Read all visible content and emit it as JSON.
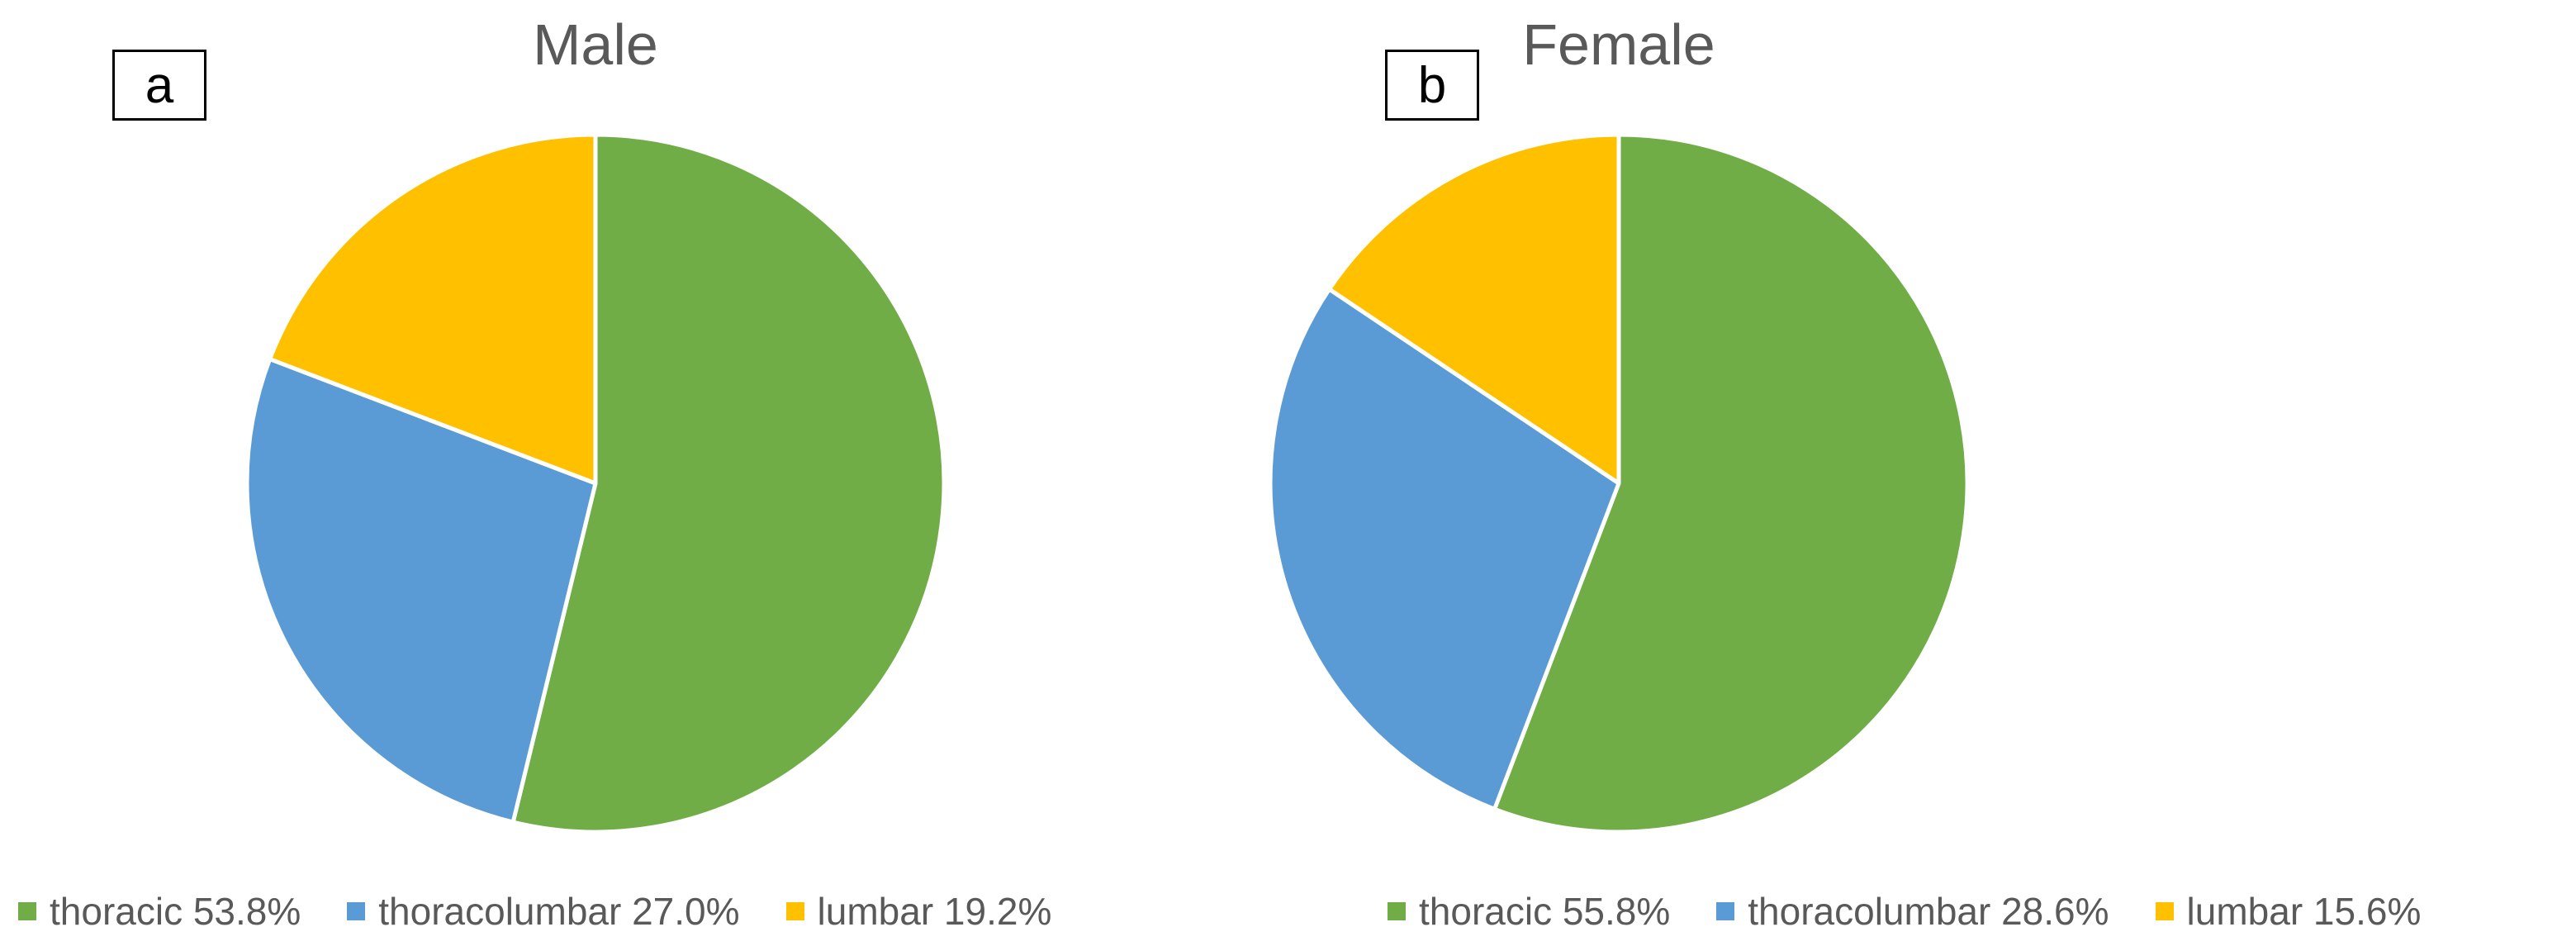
{
  "panels": [
    {
      "label": "a"
    },
    {
      "label": "b"
    }
  ],
  "chart_data": [
    {
      "type": "pie",
      "title": "Male",
      "categories": [
        "thoracic",
        "thoracolumbar",
        "lumbar"
      ],
      "values": [
        53.8,
        27.0,
        19.2
      ],
      "colors": [
        "#70AD47",
        "#5B9BD5",
        "#FFC000"
      ],
      "legend": [
        "thoracic 53.8%",
        "thoracolumbar 27.0%",
        "lumbar 19.2%"
      ],
      "legend_position": "bottom"
    },
    {
      "type": "pie",
      "title": "Female",
      "categories": [
        "thoracic",
        "thoracolumbar",
        "lumbar"
      ],
      "values": [
        55.8,
        28.6,
        15.6
      ],
      "colors": [
        "#70AD47",
        "#5B9BD5",
        "#FFC000"
      ],
      "legend": [
        "thoracic 55.8%",
        "thoracolumbar 28.6%",
        "lumbar 15.6%"
      ],
      "legend_position": "bottom"
    }
  ]
}
